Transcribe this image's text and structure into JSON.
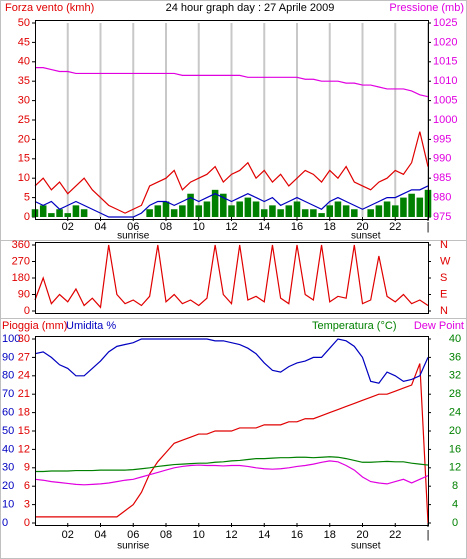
{
  "chart_data": [
    {
      "type": "line",
      "title": "24 hour graph day : 27 Aprile 2009",
      "y_label": "Forza vento (kmh)",
      "y2_label": "Pressione (mb)",
      "x": [
        0,
        0.5,
        1,
        1.5,
        2,
        2.5,
        3,
        3.5,
        4,
        4.5,
        5,
        5.5,
        6,
        6.5,
        7,
        7.5,
        8,
        8.5,
        9,
        9.5,
        10,
        10.5,
        11,
        11.5,
        12,
        12.5,
        13,
        13.5,
        14,
        14.5,
        15,
        15.5,
        16,
        16.5,
        17,
        17.5,
        18,
        18.5,
        19,
        19.5,
        20,
        20.5,
        21,
        21.5,
        22,
        22.5,
        23,
        23.5,
        24
      ],
      "xlim": [
        0,
        24
      ],
      "xticks": [
        {
          "value": 2,
          "label": "02"
        },
        {
          "value": 4,
          "label": "04"
        },
        {
          "value": 6,
          "label": "06"
        },
        {
          "value": 8,
          "label": "08"
        },
        {
          "value": 10,
          "label": "10"
        },
        {
          "value": 12,
          "label": "12"
        },
        {
          "value": 14,
          "label": "14"
        },
        {
          "value": 16,
          "label": "16"
        },
        {
          "value": 18,
          "label": "18"
        },
        {
          "value": 20,
          "label": "20"
        },
        {
          "value": 22,
          "label": "22"
        },
        {
          "value": 24,
          "label": "|"
        }
      ],
      "ylim": [
        0,
        50
      ],
      "yticks": [
        0,
        5,
        10,
        15,
        20,
        25,
        30,
        35,
        40,
        45,
        50
      ],
      "y2lim": [
        975,
        1025
      ],
      "y2ticks": [
        975,
        980,
        985,
        990,
        995,
        1000,
        1005,
        1010,
        1015,
        1020,
        1025
      ],
      "grid": true,
      "annotations": [
        {
          "text": "sunrise",
          "x": 6
        },
        {
          "text": "sunset",
          "x": 20.2
        }
      ],
      "series": [
        {
          "color": "#008000",
          "style": "bars",
          "values": [
            2,
            3,
            1,
            2,
            1,
            3,
            2,
            0,
            0,
            0,
            0,
            0,
            0,
            0,
            2,
            3,
            4,
            2,
            3,
            6,
            3,
            4,
            7,
            6,
            3,
            4,
            5,
            4,
            2,
            3,
            2,
            3,
            4,
            2,
            2,
            1,
            3,
            4,
            3,
            2,
            0,
            2,
            3,
            4,
            3,
            5,
            6,
            5,
            7
          ]
        },
        {
          "color": "#e00000",
          "values": [
            8,
            10,
            7,
            9,
            6,
            8,
            10,
            7,
            5,
            3,
            2,
            1,
            2,
            3,
            8,
            9,
            10,
            12,
            7,
            9,
            10,
            11,
            13,
            9,
            11,
            12,
            14,
            10,
            12,
            9,
            11,
            8,
            10,
            12,
            11,
            9,
            12,
            10,
            13,
            9,
            8,
            7,
            9,
            10,
            12,
            11,
            14,
            22,
            13
          ]
        },
        {
          "color": "#0000c0",
          "values": [
            4,
            3,
            4,
            2,
            3,
            4,
            3,
            2,
            1,
            0,
            0,
            0,
            0,
            1,
            3,
            4,
            4,
            3,
            4,
            5,
            4,
            5,
            6,
            5,
            4,
            5,
            6,
            5,
            4,
            5,
            3,
            4,
            5,
            4,
            3,
            2,
            4,
            5,
            4,
            3,
            2,
            3,
            4,
            5,
            5,
            6,
            7,
            7,
            8
          ]
        },
        {
          "color": "#e000e0",
          "axis": "y2",
          "values": [
            1013.5,
            1013.5,
            1013,
            1012.5,
            1012.5,
            1012,
            1012,
            1012,
            1012,
            1012,
            1012,
            1012,
            1012,
            1012,
            1012,
            1012,
            1012,
            1012,
            1011.5,
            1011.5,
            1011.5,
            1011.5,
            1011.5,
            1011.5,
            1011.5,
            1011.5,
            1011,
            1011,
            1011,
            1011,
            1011,
            1011,
            1011,
            1010.5,
            1010.5,
            1010,
            1010,
            1010,
            1009.5,
            1009.5,
            1009,
            1009,
            1008.5,
            1008,
            1008,
            1008,
            1007.5,
            1006.5,
            1006
          ]
        }
      ]
    },
    {
      "type": "line",
      "x": [
        0,
        0.5,
        1,
        1.5,
        2,
        2.5,
        3,
        3.5,
        4,
        4.5,
        5,
        5.5,
        6,
        6.5,
        7,
        7.5,
        8,
        8.5,
        9,
        9.5,
        10,
        10.5,
        11,
        11.5,
        12,
        12.5,
        13,
        13.5,
        14,
        14.5,
        15,
        15.5,
        16,
        16.5,
        17,
        17.5,
        18,
        18.5,
        19,
        19.5,
        20,
        20.5,
        21,
        21.5,
        22,
        22.5,
        23,
        23.5,
        24
      ],
      "xlim": [
        0,
        24
      ],
      "ylim": [
        0,
        360
      ],
      "yticks": [
        0,
        90,
        180,
        270,
        360
      ],
      "y2lim": [
        0,
        360
      ],
      "y2ticks": [
        {
          "value": 0,
          "label": "N"
        },
        {
          "value": 90,
          "label": "E"
        },
        {
          "value": 180,
          "label": "S"
        },
        {
          "value": 270,
          "label": "W"
        },
        {
          "value": 360,
          "label": "N"
        }
      ],
      "series": [
        {
          "color": "#e00000",
          "values": [
            60,
            180,
            40,
            90,
            50,
            120,
            30,
            70,
            20,
            360,
            90,
            40,
            60,
            30,
            80,
            360,
            50,
            90,
            40,
            60,
            30,
            70,
            360,
            90,
            40,
            360,
            60,
            80,
            50,
            360,
            70,
            40,
            360,
            90,
            60,
            360,
            50,
            80,
            70,
            360,
            40,
            60,
            300,
            80,
            50,
            90,
            40,
            60,
            30
          ]
        }
      ]
    },
    {
      "type": "line",
      "x": [
        0,
        0.5,
        1,
        1.5,
        2,
        2.5,
        3,
        3.5,
        4,
        4.5,
        5,
        5.5,
        6,
        6.5,
        7,
        7.5,
        8,
        8.5,
        9,
        9.5,
        10,
        10.5,
        11,
        11.5,
        12,
        12.5,
        13,
        13.5,
        14,
        14.5,
        15,
        15.5,
        16,
        16.5,
        17,
        17.5,
        18,
        18.5,
        19,
        19.5,
        20,
        20.5,
        21,
        21.5,
        22,
        22.5,
        23,
        23.5,
        24
      ],
      "xlim": [
        0,
        24
      ],
      "xticks": [
        {
          "value": 2,
          "label": "02"
        },
        {
          "value": 4,
          "label": "04"
        },
        {
          "value": 6,
          "label": "06"
        },
        {
          "value": 8,
          "label": "08"
        },
        {
          "value": 10,
          "label": "10"
        },
        {
          "value": 12,
          "label": "12"
        },
        {
          "value": 14,
          "label": "14"
        },
        {
          "value": 16,
          "label": "16"
        },
        {
          "value": 18,
          "label": "18"
        },
        {
          "value": 20,
          "label": "20"
        },
        {
          "value": 22,
          "label": "22"
        },
        {
          "value": 24,
          "label": "|"
        }
      ],
      "ylim": [
        0,
        100
      ],
      "yticks": [
        0,
        10,
        20,
        30,
        40,
        50,
        60,
        70,
        80,
        90,
        100
      ],
      "y3lim": [
        0,
        30
      ],
      "y3ticks": [
        0,
        3,
        6,
        9,
        12,
        15,
        18,
        21,
        24,
        27,
        30
      ],
      "y2lim": [
        0,
        40
      ],
      "y2ticks": [
        0,
        4,
        8,
        12,
        16,
        20,
        24,
        28,
        32,
        36,
        40
      ],
      "grid": false,
      "annotations": [
        {
          "text": "sunrise",
          "x": 6
        },
        {
          "text": "sunset",
          "x": 20.2
        }
      ],
      "series": [
        {
          "name": "Pioggia (mm)",
          "color": "#e00000",
          "axis": "y3",
          "values": [
            1,
            1,
            1,
            1,
            1,
            1,
            1,
            1,
            1,
            1,
            1,
            2,
            3,
            5,
            8,
            10,
            11.5,
            13,
            13.5,
            14,
            14.5,
            14.5,
            15,
            15,
            15,
            15.5,
            15.5,
            15.5,
            16,
            16,
            16,
            16.5,
            16.5,
            17,
            17,
            17.5,
            18,
            18.5,
            19,
            19.5,
            20,
            20.5,
            21,
            21,
            21.5,
            22,
            22.5,
            26,
            0
          ]
        },
        {
          "name": "Umidita %",
          "color": "#0000c0",
          "values": [
            92,
            93,
            90,
            86,
            84,
            80,
            80,
            84,
            88,
            93,
            96,
            97,
            98,
            100,
            100,
            100,
            100,
            100,
            100,
            100,
            100,
            100,
            99,
            99,
            98,
            97,
            95,
            92,
            87,
            83,
            82,
            85,
            87,
            88,
            90,
            90,
            95,
            100,
            99,
            96,
            90,
            77,
            76,
            82,
            80,
            77,
            78,
            80,
            90
          ]
        },
        {
          "name": "Temperatura (°C)",
          "color": "#008000",
          "axis": "y2",
          "values": [
            11.2,
            11.2,
            11.3,
            11.3,
            11.3,
            11.4,
            11.4,
            11.4,
            11.5,
            11.5,
            11.5,
            11.5,
            11.6,
            11.8,
            12,
            12.3,
            12.5,
            12.7,
            12.8,
            12.9,
            13,
            13,
            13.2,
            13.3,
            13.5,
            13.6,
            13.8,
            14,
            14,
            14.1,
            14.2,
            14.2,
            14.3,
            14.3,
            14.2,
            14.3,
            14.4,
            14.3,
            14,
            13.6,
            13.2,
            13.2,
            13.3,
            13.4,
            13.3,
            13.3,
            13,
            12.8,
            12.6
          ]
        },
        {
          "name": "Dew Point",
          "color": "#e000e0",
          "axis": "y2",
          "values": [
            9.5,
            9.3,
            9,
            8.8,
            8.6,
            8.4,
            8.3,
            8.4,
            8.5,
            8.7,
            9,
            9.3,
            9.5,
            10,
            10.5,
            11,
            11.5,
            12,
            12.3,
            12.5,
            12.6,
            12.5,
            12.5,
            12.4,
            12.5,
            12.5,
            12.3,
            12,
            11.8,
            11.7,
            11.8,
            12,
            12.3,
            12.5,
            12.8,
            13.2,
            13.5,
            13.3,
            12.5,
            11.5,
            10,
            9,
            8.7,
            8.5,
            9,
            9.5,
            8.7,
            9.5,
            10.3
          ]
        }
      ]
    }
  ]
}
